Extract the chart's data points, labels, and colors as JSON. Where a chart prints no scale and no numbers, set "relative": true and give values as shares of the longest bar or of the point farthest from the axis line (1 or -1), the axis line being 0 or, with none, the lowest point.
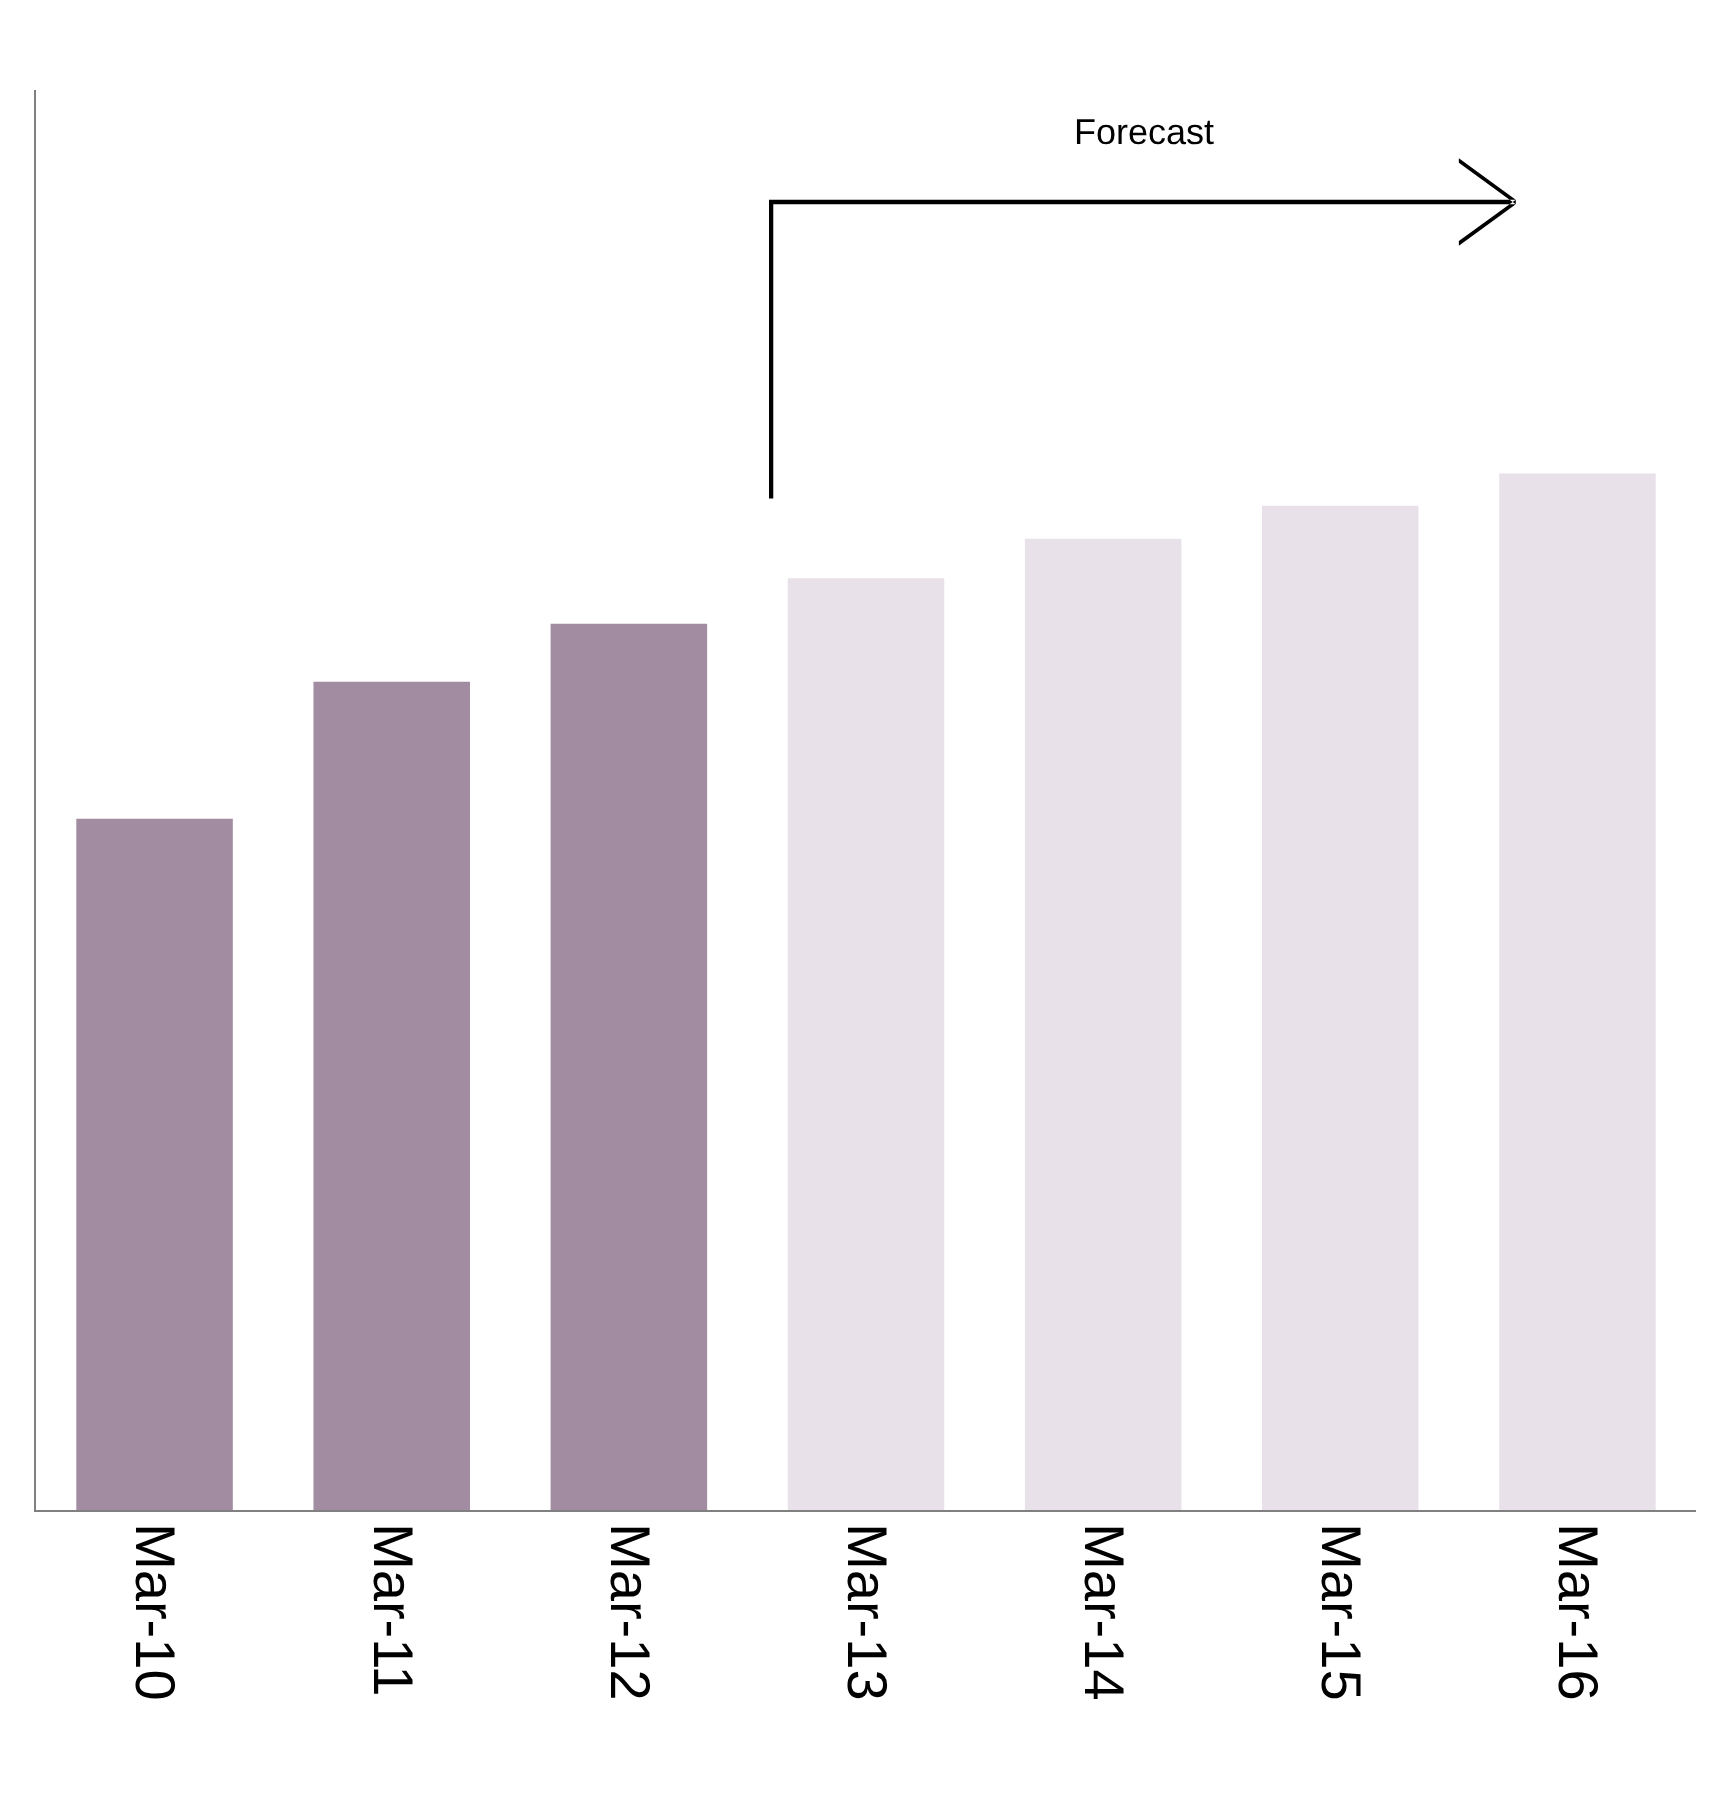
{
  "chart_data": {
    "type": "bar",
    "relative": true,
    "categories": [
      "Mar-10",
      "Mar-11",
      "Mar-12",
      "Mar-13",
      "Mar-14",
      "Mar-15",
      "Mar-16"
    ],
    "values": [
      0.667,
      0.799,
      0.855,
      0.899,
      0.937,
      0.969,
      1
    ],
    "colors": [
      "#a28ca2",
      "#a28ca2",
      "#a28ca2",
      "#e8e1e9",
      "#e8e1e9",
      "#e8e1e9",
      "#e8e1e9"
    ],
    "annotations": [
      "Forecast"
    ],
    "legend": false
  }
}
